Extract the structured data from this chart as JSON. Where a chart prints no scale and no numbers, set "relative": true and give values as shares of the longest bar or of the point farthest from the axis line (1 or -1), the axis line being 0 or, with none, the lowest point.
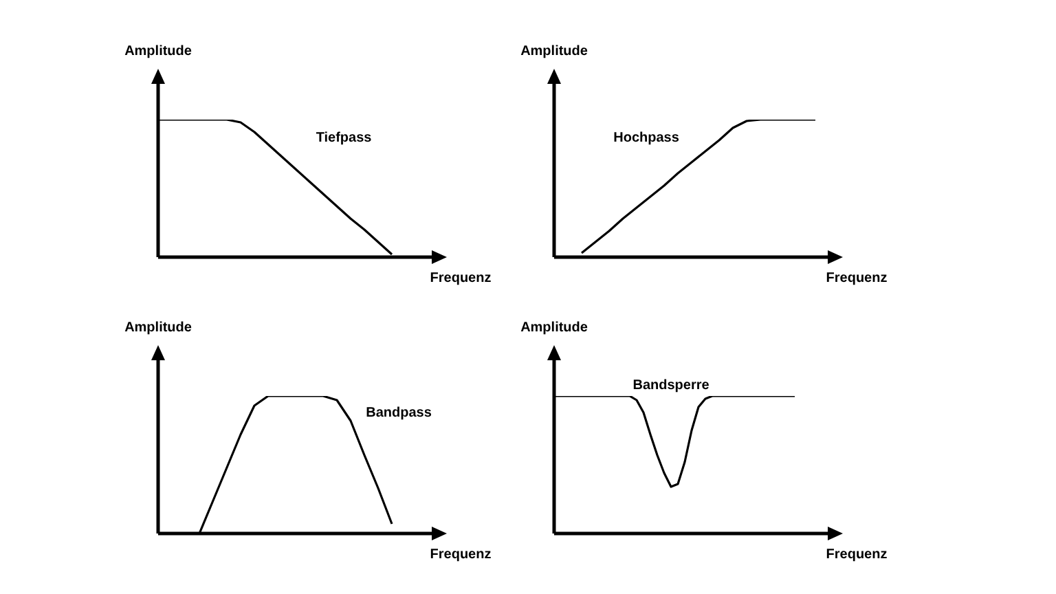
{
  "chart_data": [
    {
      "type": "line",
      "relative": true,
      "xlabel": "Frequenz",
      "ylabel": "Amplitude",
      "annotations": [
        "Tiefpass"
      ],
      "categories": [
        null,
        null,
        null,
        null,
        null,
        null,
        null,
        null,
        null,
        null,
        null,
        null,
        null,
        null,
        null,
        null,
        null,
        null,
        null,
        null,
        null
      ],
      "series": [
        {
          "color": "#000000",
          "values": [
            1,
            1,
            1,
            1,
            1,
            1,
            0.98,
            0.91,
            0.82,
            0.73,
            0.64,
            0.55,
            0.46,
            0.37,
            0.28,
            0.2,
            0.11,
            0.02,
            null,
            null,
            null
          ]
        }
      ]
    },
    {
      "type": "line",
      "relative": true,
      "xlabel": "Frequenz",
      "ylabel": "Amplitude",
      "annotations": [
        "Hochpass"
      ],
      "categories": [
        null,
        null,
        null,
        null,
        null,
        null,
        null,
        null,
        null,
        null,
        null,
        null,
        null,
        null,
        null,
        null,
        null,
        null,
        null,
        null,
        null
      ],
      "series": [
        {
          "color": "#000000",
          "values": [
            null,
            null,
            0.03,
            0.11,
            0.19,
            0.28,
            0.36,
            0.44,
            0.52,
            0.61,
            0.69,
            0.77,
            0.85,
            0.94,
            0.99,
            1,
            1,
            1,
            1,
            1,
            null
          ]
        }
      ]
    },
    {
      "type": "line",
      "relative": true,
      "xlabel": "Frequenz",
      "ylabel": "Amplitude",
      "annotations": [
        "Bandpass"
      ],
      "categories": [
        null,
        null,
        null,
        null,
        null,
        null,
        null,
        null,
        null,
        null,
        null,
        null,
        null,
        null,
        null,
        null,
        null,
        null,
        null,
        null,
        null
      ],
      "series": [
        {
          "color": "#000000",
          "values": [
            null,
            null,
            null,
            0,
            0.24,
            0.48,
            0.72,
            0.93,
            1,
            1,
            1,
            1,
            1,
            0.97,
            0.82,
            0.57,
            0.33,
            0.07,
            null,
            null,
            null
          ]
        }
      ]
    },
    {
      "type": "line",
      "relative": true,
      "xlabel": "Frequenz",
      "ylabel": "Amplitude",
      "annotations": [
        "Bandsperre"
      ],
      "categories": [
        null,
        null,
        null,
        null,
        null,
        null,
        null,
        null,
        null,
        null,
        null,
        null,
        null,
        null,
        null,
        null,
        null,
        null,
        null,
        null,
        null,
        null,
        null,
        null,
        null,
        null,
        null,
        null,
        null,
        null,
        null,
        null,
        null,
        null,
        null,
        null,
        null,
        null,
        null,
        null,
        null
      ],
      "series": [
        {
          "color": "#000000",
          "values": [
            1,
            1,
            1,
            1,
            1,
            1,
            1,
            1,
            1,
            1,
            1,
            1,
            0.97,
            0.88,
            0.72,
            0.57,
            0.44,
            0.34,
            0.36,
            0.52,
            0.75,
            0.92,
            0.98,
            1,
            1,
            1,
            1,
            1,
            1,
            1,
            1,
            1,
            1,
            1,
            1,
            1,
            null,
            null,
            null,
            null,
            null
          ]
        }
      ]
    }
  ]
}
